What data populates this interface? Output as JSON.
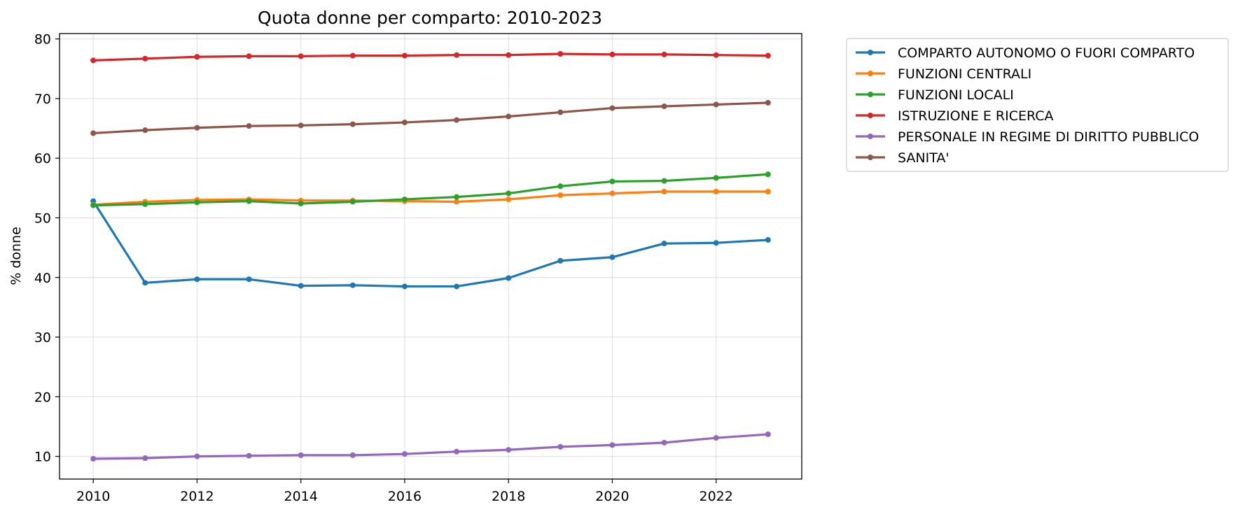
{
  "chart_data": {
    "type": "line",
    "title": "Quota donne per comparto: 2010-2023",
    "xlabel": "",
    "ylabel": "% donne",
    "x": [
      2010,
      2011,
      2012,
      2013,
      2014,
      2015,
      2016,
      2017,
      2018,
      2019,
      2020,
      2021,
      2022,
      2023
    ],
    "xlim": [
      2009.35,
      2023.65
    ],
    "ylim": [
      6.2,
      80.9
    ],
    "xticks": [
      2010,
      2012,
      2014,
      2016,
      2018,
      2020,
      2022
    ],
    "yticks": [
      10,
      20,
      30,
      40,
      50,
      60,
      70,
      80
    ],
    "grid": true,
    "legend_position": "outside-upper-right",
    "series": [
      {
        "name": "COMPARTO AUTONOMO O FUORI COMPARTO",
        "color": "#1f77b4",
        "values": [
          52.8,
          39.1,
          39.7,
          39.7,
          38.6,
          38.7,
          38.5,
          38.5,
          39.9,
          42.8,
          43.4,
          45.7,
          45.8,
          46.3
        ]
      },
      {
        "name": "FUNZIONI CENTRALI",
        "color": "#ff7f0e",
        "values": [
          52.2,
          52.7,
          53.0,
          53.1,
          52.9,
          52.9,
          52.8,
          52.7,
          53.1,
          53.8,
          54.1,
          54.4,
          54.4,
          54.4
        ]
      },
      {
        "name": "FUNZIONI LOCALI",
        "color": "#2ca02c",
        "values": [
          52.1,
          52.3,
          52.6,
          52.8,
          52.4,
          52.7,
          53.1,
          53.5,
          54.1,
          55.3,
          56.1,
          56.2,
          56.7,
          57.3
        ]
      },
      {
        "name": "ISTRUZIONE E RICERCA",
        "color": "#d62728",
        "values": [
          76.4,
          76.7,
          77.0,
          77.1,
          77.1,
          77.2,
          77.2,
          77.3,
          77.3,
          77.5,
          77.4,
          77.4,
          77.3,
          77.2
        ]
      },
      {
        "name": "PERSONALE IN REGIME DI DIRITTO PUBBLICO",
        "color": "#9467bd",
        "values": [
          9.6,
          9.7,
          10.0,
          10.1,
          10.2,
          10.2,
          10.4,
          10.8,
          11.1,
          11.6,
          11.9,
          12.3,
          13.1,
          13.7
        ]
      },
      {
        "name": "SANITA'",
        "color": "#8c564b",
        "values": [
          64.2,
          64.7,
          65.1,
          65.4,
          65.5,
          65.7,
          66.0,
          66.4,
          67.0,
          67.7,
          68.4,
          68.7,
          69.0,
          69.3
        ]
      }
    ]
  }
}
